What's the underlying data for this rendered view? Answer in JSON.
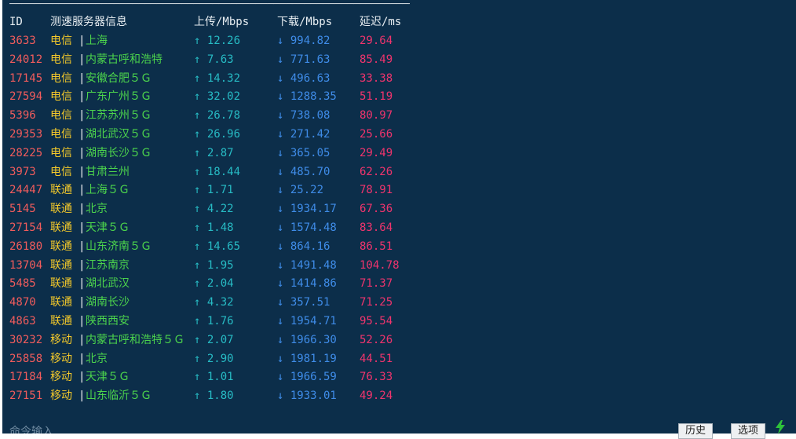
{
  "divider": "──────────────────────────────────────────────────────────────────",
  "headers": {
    "id": "ID",
    "info": "测速服务器信息",
    "up": "上传/Mbps",
    "down": "下载/Mbps",
    "latency": "延迟/ms"
  },
  "rows": [
    {
      "id": "3633",
      "isp": "电信",
      "sep": "|",
      "loc": "上海",
      "up": "↑ 12.26",
      "down": "↓ 994.82",
      "latency": "29.64"
    },
    {
      "id": "24012",
      "isp": "电信",
      "sep": "|",
      "loc": "内蒙古呼和浩特",
      "up": "↑ 7.63",
      "down": "↓ 771.63",
      "latency": "85.49"
    },
    {
      "id": "17145",
      "isp": "电信",
      "sep": "|",
      "loc": "安徽合肥５Ｇ",
      "up": "↑ 14.32",
      "down": "↓ 496.63",
      "latency": "33.38"
    },
    {
      "id": "27594",
      "isp": "电信",
      "sep": "|",
      "loc": "广东广州５Ｇ",
      "up": "↑ 32.02",
      "down": "↓ 1288.35",
      "latency": "51.19"
    },
    {
      "id": "5396",
      "isp": "电信",
      "sep": "|",
      "loc": "江苏苏州５Ｇ",
      "up": "↑ 26.78",
      "down": "↓ 738.08",
      "latency": "80.97"
    },
    {
      "id": "29353",
      "isp": "电信",
      "sep": "|",
      "loc": "湖北武汉５Ｇ",
      "up": "↑ 26.96",
      "down": "↓ 271.42",
      "latency": "25.66"
    },
    {
      "id": "28225",
      "isp": "电信",
      "sep": "|",
      "loc": "湖南长沙５Ｇ",
      "up": "↑ 2.87",
      "down": "↓ 365.05",
      "latency": "29.49"
    },
    {
      "id": "3973",
      "isp": "电信",
      "sep": "|",
      "loc": "甘肃兰州",
      "up": "↑ 18.44",
      "down": "↓ 485.70",
      "latency": "62.26"
    },
    {
      "id": "24447",
      "isp": "联通",
      "sep": "|",
      "loc": "上海５Ｇ",
      "up": "↑ 1.71",
      "down": "↓ 25.22",
      "latency": "78.91"
    },
    {
      "id": "5145",
      "isp": "联通",
      "sep": "|",
      "loc": "北京",
      "up": "↑ 4.22",
      "down": "↓ 1934.17",
      "latency": "67.36"
    },
    {
      "id": "27154",
      "isp": "联通",
      "sep": "|",
      "loc": "天津５Ｇ",
      "up": "↑ 1.48",
      "down": "↓ 1574.48",
      "latency": "83.64"
    },
    {
      "id": "26180",
      "isp": "联通",
      "sep": "|",
      "loc": "山东济南５Ｇ",
      "up": "↑ 14.65",
      "down": "↓ 864.16",
      "latency": "86.51"
    },
    {
      "id": "13704",
      "isp": "联通",
      "sep": "|",
      "loc": "江苏南京",
      "up": "↑ 1.95",
      "down": "↓ 1491.48",
      "latency": "104.78"
    },
    {
      "id": "5485",
      "isp": "联通",
      "sep": "|",
      "loc": "湖北武汉",
      "up": "↑ 2.04",
      "down": "↓ 1414.86",
      "latency": "71.37"
    },
    {
      "id": "4870",
      "isp": "联通",
      "sep": "|",
      "loc": "湖南长沙",
      "up": "↑ 4.32",
      "down": "↓ 357.51",
      "latency": "71.25"
    },
    {
      "id": "4863",
      "isp": "联通",
      "sep": "|",
      "loc": "陕西西安",
      "up": "↑ 1.76",
      "down": "↓ 1954.71",
      "latency": "95.54"
    },
    {
      "id": "30232",
      "isp": "移动",
      "sep": "|",
      "loc": "内蒙古呼和浩特５Ｇ",
      "up": "↑ 2.07",
      "down": "↓ 1966.30",
      "latency": "52.26"
    },
    {
      "id": "25858",
      "isp": "移动",
      "sep": "|",
      "loc": "北京",
      "up": "↑ 2.90",
      "down": "↓ 1981.19",
      "latency": "44.51"
    },
    {
      "id": "17184",
      "isp": "移动",
      "sep": "|",
      "loc": "天津５Ｇ",
      "up": "↑ 1.01",
      "down": "↓ 1966.59",
      "latency": "76.33"
    },
    {
      "id": "27151",
      "isp": "移动",
      "sep": "|",
      "loc": "山东临沂５Ｇ",
      "up": "↑ 1.80",
      "down": "↓ 1933.01",
      "latency": "49.24"
    }
  ],
  "prompt": "命令输入",
  "buttons": {
    "history": "历史",
    "options": "选项"
  },
  "icons": {
    "status": "lightning-bolt-icon"
  },
  "colors": {
    "background": "#0c2e4a",
    "id": "#f25c5c",
    "isp": "#f5ca2a",
    "location": "#4cd44c",
    "upload": "#27bbc4",
    "download": "#3f8ce8",
    "latency": "#f0346d"
  }
}
